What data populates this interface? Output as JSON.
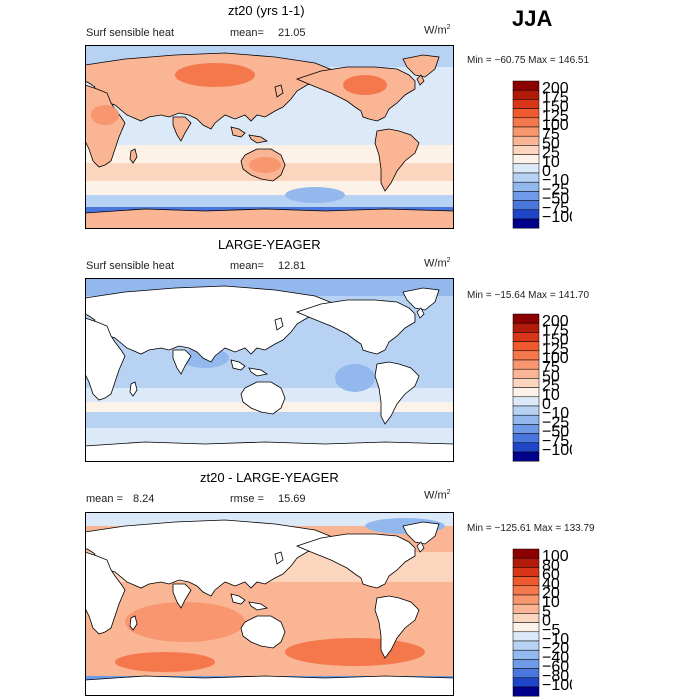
{
  "season": "JJA",
  "panels": [
    {
      "title": "zt20 (yrs 1-1)",
      "left_label": "Surf sensible heat",
      "stat_label": "mean=",
      "stat_value": "21.05",
      "units_base": "W/m",
      "units_exp": "2",
      "minmax": "Min = −60.75 Max = 146.51",
      "levels": [
        "200",
        "175",
        "150",
        "125",
        "100",
        "75",
        "50",
        "25",
        "10",
        "0",
        "−10",
        "−25",
        "−50",
        "−75",
        "−100"
      ],
      "ocean_style": "warm",
      "land_filled": true
    },
    {
      "title": "LARGE-YEAGER",
      "left_label": "Surf sensible heat",
      "stat_label": "mean=",
      "stat_value": "12.81",
      "units_base": "W/m",
      "units_exp": "2",
      "minmax": "Min = −15.64 Max = 141.70",
      "levels": [
        "200",
        "175",
        "150",
        "125",
        "100",
        "75",
        "50",
        "25",
        "10",
        "0",
        "−10",
        "−25",
        "−50",
        "−75",
        "−100"
      ],
      "ocean_style": "cool",
      "land_filled": false
    },
    {
      "title": "zt20 - LARGE-YEAGER",
      "left_label": "mean =",
      "left_value": "8.24",
      "stat_label": "rmse =",
      "stat_value": "15.69",
      "units_base": "W/m",
      "units_exp": "2",
      "minmax": "Min = −125.61 Max = 133.79",
      "levels": [
        "100",
        "80",
        "60",
        "40",
        "20",
        "10",
        "5",
        "0",
        "−5",
        "−10",
        "−20",
        "−40",
        "−60",
        "−80",
        "−100"
      ],
      "ocean_style": "diff",
      "land_filled": false
    }
  ],
  "colors": {
    "scale": [
      "#8b0000",
      "#b21a0a",
      "#d93519",
      "#ee5a2e",
      "#f5784d",
      "#f7966f",
      "#f9b594",
      "#fbd5bd",
      "#fdf2e8",
      "#dce9f9",
      "#b8d2f3",
      "#93b8ee",
      "#6f9ae8",
      "#4a77de",
      "#1f45c9",
      "#00008b"
    ],
    "coast": "#000000"
  },
  "chart_data": [
    {
      "type": "heatmap",
      "title": "zt20 (yrs 1-1)",
      "variable": "Surf sensible heat",
      "units": "W/m2",
      "mean": 21.05,
      "min": -60.75,
      "max": 146.51,
      "contour_levels": [
        -100,
        -75,
        -50,
        -25,
        -10,
        0,
        10,
        25,
        50,
        75,
        100,
        125,
        150,
        175,
        200
      ]
    },
    {
      "type": "heatmap",
      "title": "LARGE-YEAGER",
      "variable": "Surf sensible heat",
      "units": "W/m2",
      "mean": 12.81,
      "min": -15.64,
      "max": 141.7,
      "contour_levels": [
        -100,
        -75,
        -50,
        -25,
        -10,
        0,
        10,
        25,
        50,
        75,
        100,
        125,
        150,
        175,
        200
      ]
    },
    {
      "type": "heatmap",
      "title": "zt20 - LARGE-YEAGER",
      "units": "W/m2",
      "mean": 8.24,
      "rmse": 15.69,
      "min": -125.61,
      "max": 133.79,
      "contour_levels": [
        -100,
        -80,
        -60,
        -40,
        -20,
        -10,
        -5,
        0,
        5,
        10,
        20,
        40,
        60,
        80,
        100
      ]
    }
  ]
}
